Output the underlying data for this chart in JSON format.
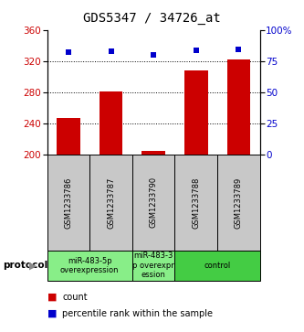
{
  "title": "GDS5347 / 34726_at",
  "samples": [
    "GSM1233786",
    "GSM1233787",
    "GSM1233790",
    "GSM1233788",
    "GSM1233789"
  ],
  "counts": [
    247,
    281,
    205,
    308,
    322
  ],
  "percentiles": [
    82,
    83,
    80,
    83.5,
    84.5
  ],
  "ylim_left": [
    200,
    360
  ],
  "ylim_right": [
    0,
    100
  ],
  "yticks_left": [
    200,
    240,
    280,
    320,
    360
  ],
  "yticks_right": [
    0,
    25,
    50,
    75,
    100
  ],
  "ytick_labels_right": [
    "0",
    "25",
    "50",
    "75",
    "100%"
  ],
  "bar_color": "#cc0000",
  "dot_color": "#0000cc",
  "sample_box_color": "#c8c8c8",
  "protocol_groups": [
    {
      "label": "miR-483-5p\noverexpression",
      "count": 2,
      "color": "#88ee88"
    },
    {
      "label": "miR-483-3\np overexpr\nession",
      "count": 1,
      "color": "#88ee88"
    },
    {
      "label": "control",
      "count": 2,
      "color": "#44cc44"
    }
  ],
  "protocol_label": "protocol",
  "legend_count_label": "count",
  "legend_pct_label": "percentile rank within the sample",
  "title_fontsize": 10,
  "tick_fontsize": 7.5,
  "sample_fontsize": 6,
  "protocol_fontsize": 6,
  "legend_fontsize": 7
}
